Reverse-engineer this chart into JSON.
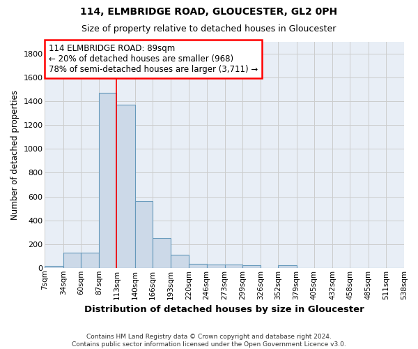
{
  "title1": "114, ELMBRIDGE ROAD, GLOUCESTER, GL2 0PH",
  "title2": "Size of property relative to detached houses in Gloucester",
  "xlabel": "Distribution of detached houses by size in Gloucester",
  "ylabel": "Number of detached properties",
  "footer1": "Contains HM Land Registry data © Crown copyright and database right 2024.",
  "footer2": "Contains public sector information licensed under the Open Government Licence v3.0.",
  "bin_edges": [
    7,
    34,
    60,
    87,
    113,
    140,
    166,
    193,
    220,
    246,
    273,
    299,
    326,
    352,
    379,
    405,
    432,
    458,
    485,
    511,
    538
  ],
  "bar_heights": [
    15,
    130,
    130,
    1470,
    1370,
    560,
    250,
    110,
    35,
    30,
    30,
    20,
    0,
    20,
    0,
    0,
    0,
    0,
    0,
    0
  ],
  "bar_color": "#ccd9e8",
  "bar_edge_color": "#6699bb",
  "bar_linewidth": 0.8,
  "grid_color": "#cccccc",
  "background_color": "#e8eef6",
  "annotation_text": "114 ELMBRIDGE ROAD: 89sqm\n← 20% of detached houses are smaller (968)\n78% of semi-detached houses are larger (3,711) →",
  "annotation_box_color": "white",
  "annotation_box_edge_color": "red",
  "red_line_x": 113,
  "ylim": [
    0,
    1900
  ],
  "yticks": [
    0,
    200,
    400,
    600,
    800,
    1000,
    1200,
    1400,
    1600,
    1800
  ],
  "tick_labels": [
    "7sqm",
    "34sqm",
    "60sqm",
    "87sqm",
    "113sqm",
    "140sqm",
    "166sqm",
    "193sqm",
    "220sqm",
    "246sqm",
    "273sqm",
    "299sqm",
    "326sqm",
    "352sqm",
    "379sqm",
    "405sqm",
    "432sqm",
    "458sqm",
    "485sqm",
    "511sqm",
    "538sqm"
  ]
}
